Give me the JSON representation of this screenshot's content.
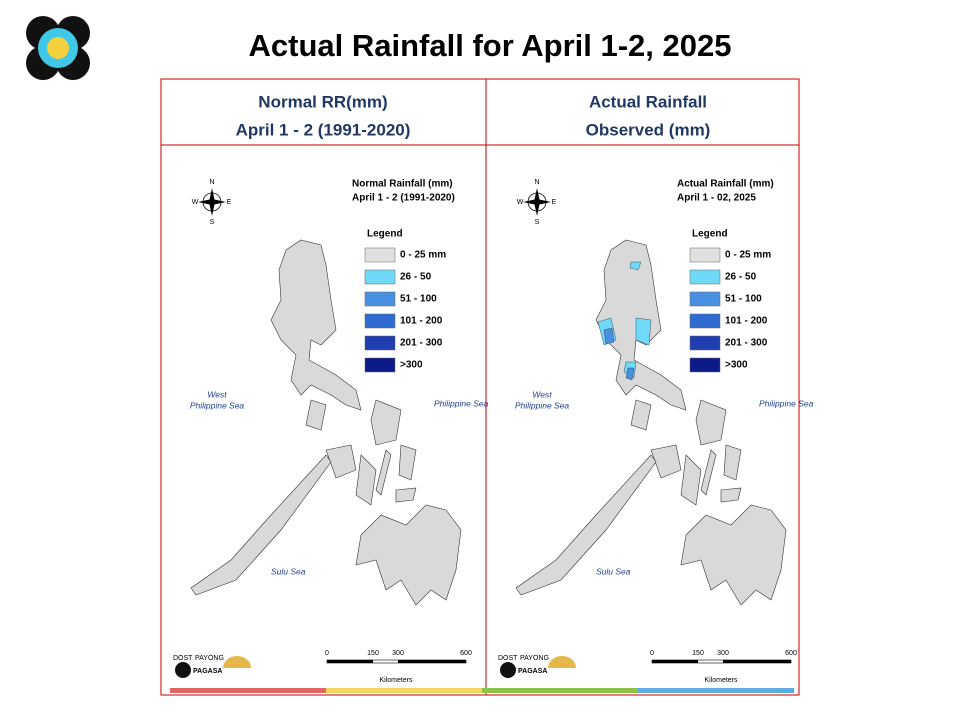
{
  "header": {
    "title": "Actual Rainfall for April 1-2, 2025"
  },
  "panels": [
    {
      "heading": [
        "Normal RR(mm)",
        "April 1 - 2 (1991-2020)"
      ],
      "map_title": [
        "Normal Rainfall (mm)",
        "April 1 - 2 (1991-2020)"
      ],
      "legend": {
        "title": "Legend",
        "items": [
          {
            "label": "0 - 25 mm",
            "color": "#e0e0e0"
          },
          {
            "label": "26 - 50",
            "color": "#6fd9f7"
          },
          {
            "label": "51 - 100",
            "color": "#4a90e2"
          },
          {
            "label": "101 - 200",
            "color": "#2f6bd0"
          },
          {
            "label": "201 - 300",
            "color": "#1f3fb0"
          },
          {
            "label": ">300",
            "color": "#0c1a8a"
          }
        ]
      },
      "compass": [
        "N",
        "S",
        "E",
        "W"
      ],
      "seas": {
        "west": [
          "West",
          "Philippine Sea"
        ],
        "east": "Philippine Sea",
        "sulu": "Sulu Sea"
      },
      "scale": {
        "ticks": [
          "0",
          "150",
          "300",
          "600"
        ],
        "unit": "Kilometers"
      },
      "logo": [
        "DOST",
        "PAYONG",
        "PAGASA"
      ]
    },
    {
      "heading": [
        "Actual Rainfall",
        "Observed (mm)"
      ],
      "map_title": [
        "Actual Rainfall (mm)",
        "April 1 - 02, 2025"
      ],
      "legend": {
        "title": "Legend",
        "items": [
          {
            "label": "0 - 25 mm",
            "color": "#e0e0e0"
          },
          {
            "label": "26 - 50",
            "color": "#6fd9f7"
          },
          {
            "label": "51 - 100",
            "color": "#4a90e2"
          },
          {
            "label": "101 - 200",
            "color": "#2f6bd0"
          },
          {
            "label": "201 - 300",
            "color": "#1f3fb0"
          },
          {
            "label": ">300",
            "color": "#0c1a8a"
          }
        ]
      },
      "compass": [
        "N",
        "S",
        "E",
        "W"
      ],
      "seas": {
        "west": [
          "West",
          "Philippine Sea"
        ],
        "east": "Philippine Sea",
        "sulu": "Sulu Sea"
      },
      "scale": {
        "ticks": [
          "0",
          "150",
          "300",
          "600"
        ],
        "unit": "Kilometers"
      },
      "logo": [
        "DOST",
        "PAYONG",
        "PAGASA"
      ]
    }
  ]
}
